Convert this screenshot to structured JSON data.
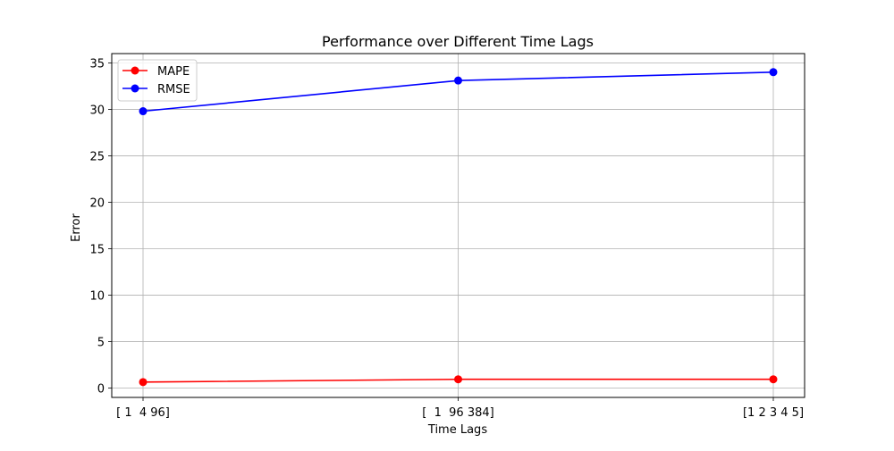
{
  "chart_data": {
    "type": "line",
    "title": "Performance over Different Time Lags",
    "xlabel": "Time Lags",
    "ylabel": "Error",
    "categories": [
      "[ 1  4 96]",
      "[  1  96 384]",
      "[1 2 3 4 5]"
    ],
    "ylim": [
      -1,
      36
    ],
    "yticks": [
      0,
      5,
      10,
      15,
      20,
      25,
      30,
      35
    ],
    "grid": true,
    "legend_position": "top-left",
    "series": [
      {
        "name": "MAPE",
        "color": "#ff0000",
        "values": [
          0.65,
          0.95,
          0.95
        ]
      },
      {
        "name": "RMSE",
        "color": "#0000ff",
        "values": [
          29.8,
          33.1,
          34.0
        ]
      }
    ]
  }
}
